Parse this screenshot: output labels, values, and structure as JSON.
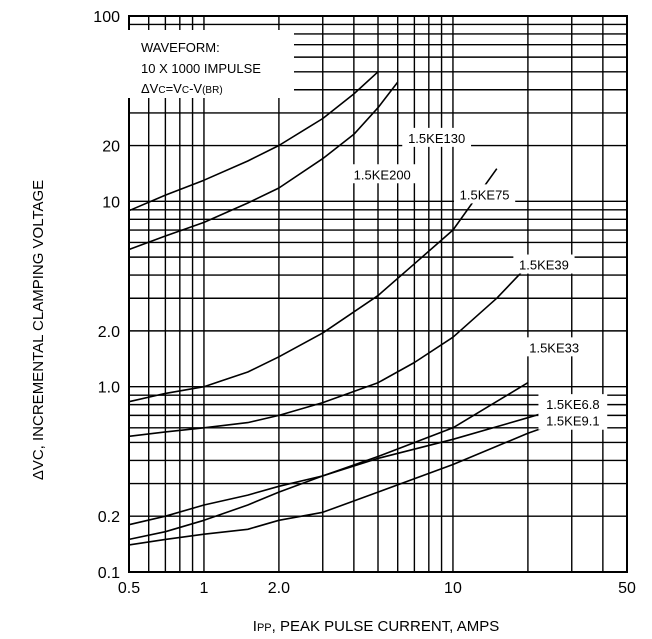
{
  "chart_data": {
    "type": "line",
    "x_scale": "log",
    "y_scale": "log",
    "xlim": [
      0.5,
      50
    ],
    "ylim": [
      0.1,
      100
    ],
    "grid": true,
    "xlabel": {
      "prefix": "I",
      "sub": "PP",
      "rest": ", PEAK PULSE CURRENT, AMPS"
    },
    "ylabel": "ΔVC, INCREMENTAL CLAMPING VOLTAGE",
    "x_ticks": [
      {
        "value": 0.5,
        "label": "0.5"
      },
      {
        "value": 1,
        "label": "1"
      },
      {
        "value": 2,
        "label": "2.0"
      },
      {
        "value": 10,
        "label": "10"
      },
      {
        "value": 50,
        "label": "50"
      }
    ],
    "y_ticks": [
      {
        "value": 100,
        "label": "100"
      },
      {
        "value": 20,
        "label": "20"
      },
      {
        "value": 10,
        "label": "10"
      },
      {
        "value": 2,
        "label": "2.0"
      },
      {
        "value": 1,
        "label": "1.0"
      },
      {
        "value": 0.2,
        "label": "0.2"
      },
      {
        "value": 0.1,
        "label": "0.1"
      }
    ],
    "annotation": {
      "line1": "WAVEFORM:",
      "line2": "10 X 1000 IMPULSE",
      "line3_parts": [
        "ΔV",
        "C",
        "=V",
        "C",
        "-V",
        "(BR)"
      ]
    },
    "series": [
      {
        "name": "1.5KE200",
        "x": [
          0.5,
          0.7,
          1.0,
          1.5,
          2.0,
          3.0,
          4.0,
          5.0
        ],
        "y": [
          8.9,
          10.8,
          13.0,
          16.5,
          20.0,
          28.0,
          38.0,
          50.0
        ]
      },
      {
        "name": "1.5KE130",
        "x": [
          0.5,
          0.7,
          1.0,
          1.5,
          2.0,
          3.0,
          4.0,
          5.0,
          6.0
        ],
        "y": [
          5.5,
          6.5,
          7.7,
          9.8,
          11.8,
          17.0,
          23.0,
          32.0,
          44.0
        ]
      },
      {
        "name": "1.5KE75",
        "x": [
          0.5,
          0.7,
          1.0,
          1.5,
          2.0,
          3.0,
          5.0,
          7.0,
          10.0,
          15.0
        ],
        "y": [
          0.83,
          0.92,
          1.0,
          1.2,
          1.45,
          1.95,
          3.1,
          4.6,
          7.0,
          15.0
        ]
      },
      {
        "name": "1.5KE39",
        "x": [
          0.5,
          0.7,
          1.0,
          1.5,
          2.0,
          3.0,
          5.0,
          7.0,
          10.0,
          15.0,
          20.0
        ],
        "y": [
          0.54,
          0.57,
          0.6,
          0.64,
          0.7,
          0.82,
          1.05,
          1.35,
          1.85,
          3.0,
          4.5
        ]
      },
      {
        "name": "1.5KE33",
        "x": [
          0.5,
          0.7,
          1.0,
          1.5,
          2.0,
          3.0,
          5.0,
          10.0,
          20.0
        ],
        "y": [
          0.18,
          0.2,
          0.23,
          0.26,
          0.29,
          0.33,
          0.42,
          0.6,
          1.05
        ]
      },
      {
        "name": "1.5KE6.8",
        "x": [
          0.5,
          0.7,
          1.0,
          1.5,
          2.0,
          3.0,
          5.0,
          10.0,
          20.0,
          30.0
        ],
        "y": [
          0.15,
          0.165,
          0.19,
          0.23,
          0.27,
          0.33,
          0.41,
          0.52,
          0.68,
          0.8
        ]
      },
      {
        "name": "1.5KE9.1",
        "x": [
          0.5,
          0.7,
          1.0,
          1.5,
          2.0,
          3.0,
          5.0,
          10.0,
          20.0,
          30.0
        ],
        "y": [
          0.14,
          0.15,
          0.16,
          0.17,
          0.19,
          0.21,
          0.27,
          0.38,
          0.56,
          0.68
        ]
      }
    ]
  }
}
